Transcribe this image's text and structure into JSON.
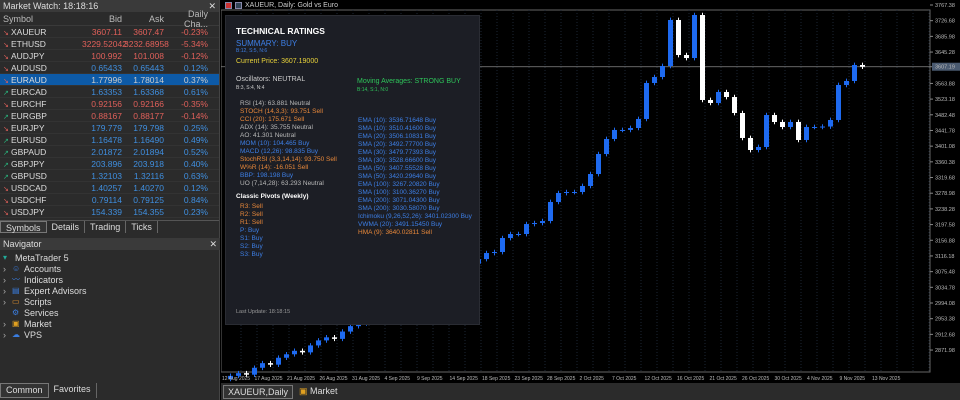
{
  "market_watch": {
    "title": "Market Watch: 18:18:16",
    "columns": [
      "Symbol",
      "Bid",
      "Ask",
      "Daily Cha..."
    ],
    "rows": [
      {
        "symbol": "XAUEUR",
        "bid": "3607.11",
        "ask": "3607.47",
        "change": "-0.23%",
        "dir": "down"
      },
      {
        "symbol": "ETHUSD",
        "bid": "3229.52042",
        "ask": "3232.68958",
        "change": "-5.34%",
        "dir": "down"
      },
      {
        "symbol": "AUDJPY",
        "bid": "100.992",
        "ask": "101.008",
        "change": "-0.12%",
        "dir": "down"
      },
      {
        "symbol": "AUDUSD",
        "bid": "0.65433",
        "ask": "0.65443",
        "change": "0.12%",
        "dir": "down"
      },
      {
        "symbol": "EURAUD",
        "bid": "1.77996",
        "ask": "1.78014",
        "change": "0.37%",
        "dir": "down",
        "selected": true
      },
      {
        "symbol": "EURCAD",
        "bid": "1.63353",
        "ask": "1.63368",
        "change": "0.61%",
        "dir": "up"
      },
      {
        "symbol": "EURCHF",
        "bid": "0.92156",
        "ask": "0.92166",
        "change": "-0.35%",
        "dir": "down"
      },
      {
        "symbol": "EURGBP",
        "bid": "0.88167",
        "ask": "0.88177",
        "change": "-0.14%",
        "dir": "up"
      },
      {
        "symbol": "EURJPY",
        "bid": "179.779",
        "ask": "179.798",
        "change": "0.25%",
        "dir": "down"
      },
      {
        "symbol": "EURUSD",
        "bid": "1.16478",
        "ask": "1.16490",
        "change": "0.49%",
        "dir": "up"
      },
      {
        "symbol": "GBPAUD",
        "bid": "2.01872",
        "ask": "2.01894",
        "change": "0.52%",
        "dir": "up"
      },
      {
        "symbol": "GBPJPY",
        "bid": "203.896",
        "ask": "203.918",
        "change": "0.40%",
        "dir": "up"
      },
      {
        "symbol": "GBPUSD",
        "bid": "1.32103",
        "ask": "1.32116",
        "change": "0.63%",
        "dir": "up"
      },
      {
        "symbol": "USDCAD",
        "bid": "1.40257",
        "ask": "1.40270",
        "change": "0.12%",
        "dir": "down"
      },
      {
        "symbol": "USDCHF",
        "bid": "0.79114",
        "ask": "0.79125",
        "change": "0.84%",
        "dir": "down"
      },
      {
        "symbol": "USDJPY",
        "bid": "154.339",
        "ask": "154.355",
        "change": "0.23%",
        "dir": "down"
      }
    ],
    "tabs": [
      "Symbols",
      "Details",
      "Trading",
      "Ticks"
    ]
  },
  "navigator": {
    "title": "Navigator",
    "items": [
      {
        "label": "MetaTrader 5",
        "icon": "mt5-icon",
        "expand": false,
        "root": true
      },
      {
        "label": "Accounts",
        "icon": "accounts-icon",
        "expand": true
      },
      {
        "label": "Indicators",
        "icon": "indicators-icon",
        "expand": true
      },
      {
        "label": "Expert Advisors",
        "icon": "expert-advisors-icon",
        "expand": true
      },
      {
        "label": "Scripts",
        "icon": "scripts-icon",
        "expand": true
      },
      {
        "label": "Services",
        "icon": "services-icon",
        "expand": false
      },
      {
        "label": "Market",
        "icon": "market-icon",
        "expand": true
      },
      {
        "label": "VPS",
        "icon": "vps-icon",
        "expand": true
      }
    ],
    "tabs": [
      "Common",
      "Favorites"
    ]
  },
  "chart": {
    "title": "XAUEUR, Daily:  Gold vs Euro",
    "current_price": 3607.19,
    "price_labels": [
      "3767.38",
      "3726.68",
      "3685.98",
      "3645.28",
      "3607.19",
      "3563.88",
      "3523.18",
      "3482.48",
      "3441.78",
      "3401.08",
      "3360.38",
      "3319.68",
      "3278.98",
      "3238.28",
      "3197.58",
      "3156.88",
      "3116.18",
      "3075.48",
      "3034.78",
      "2994.08",
      "2953.38",
      "2912.68",
      "2871.98"
    ],
    "date_labels": [
      "12 Aug 2025",
      "17 Aug 2025",
      "21 Aug 2025",
      "26 Aug 2025",
      "31 Aug 2025",
      "4 Sep 2025",
      "9 Sep 2025",
      "14 Sep 2025",
      "18 Sep 2025",
      "23 Sep 2025",
      "28 Sep 2025",
      "2 Oct 2025",
      "7 Oct 2025",
      "12 Oct 2025",
      "16 Oct 2025",
      "21 Oct 2025",
      "26 Oct 2025",
      "30 Oct 2025",
      "4 Nov 2025",
      "9 Nov 2025",
      "13 Nov 2025"
    ],
    "closes": [
      2805,
      2812,
      2808,
      2826,
      2838,
      2834,
      2852,
      2861,
      2870,
      2866,
      2884,
      2897,
      2905,
      2901,
      2920,
      2934,
      2941,
      2950,
      2946,
      2968,
      2980,
      2992,
      2999,
      3012,
      3021,
      3035,
      3046,
      3055,
      3068,
      3080,
      3096,
      3108,
      3123.8,
      3126.4,
      3162.7,
      3173.1,
      3173.1,
      3199.0,
      3201.6,
      3206.8,
      3256.2,
      3279.5,
      3282.1,
      3282.1,
      3297.7,
      3328.8,
      3380.7,
      3419.7,
      3443.1,
      3443.1,
      3448.2,
      3471.6,
      3565.0,
      3580.5,
      3609.1,
      3728.5,
      3637.6,
      3629.8,
      3741.4,
      3520.9,
      3513.1,
      3541.6,
      3528.6,
      3487.1,
      3422.3,
      3391.1,
      3398.9,
      3481.9,
      3463.8,
      3450.8,
      3463.8,
      3417.1,
      3450.8,
      3450.8,
      3452.0,
      3469.0,
      3559.8,
      3570.2,
      3611.7,
      3607.2
    ],
    "colors": {
      "up": "#1e6af0",
      "down": "#ffffff",
      "grid": "#1c2633"
    }
  },
  "ratings": {
    "title": "TECHNICAL RATINGS",
    "summary": "SUMMARY: BUY",
    "summary_counts": "B:12, S:5, N:6",
    "current_price": "Current Price: 3607.19000",
    "osc_title": "Oscillators: NEUTRAL",
    "osc_counts": "B:3, S:4, N:4",
    "ma_title": "Moving Averages: STRONG BUY",
    "ma_counts": "B:14, S:1, N:0",
    "oscillators": [
      {
        "text": "RSI (14): 63.881 Neutral",
        "signal": "neutral"
      },
      {
        "text": "STOCH (14,3,3): 93.751 Sell",
        "signal": "sell"
      },
      {
        "text": "CCI (20): 175.671 Sell",
        "signal": "sell"
      },
      {
        "text": "ADX (14): 35.755 Neutral",
        "signal": "neutral"
      },
      {
        "text": "AO: 41.301 Neutral",
        "signal": "neutral"
      },
      {
        "text": "MOM (10): 104.465 Buy",
        "signal": "buy"
      },
      {
        "text": "MACD (12,26): 98.835 Buy",
        "signal": "buy"
      },
      {
        "text": "StochRSI (3,3,14,14): 93.750 Sell",
        "signal": "sell"
      },
      {
        "text": "W%R (14): -16.051 Sell",
        "signal": "sell"
      },
      {
        "text": "BBP: 198.198 Buy",
        "signal": "buy"
      },
      {
        "text": "UO (7,14,28): 63.293 Neutral",
        "signal": "neutral"
      }
    ],
    "moving_averages": [
      {
        "text": "EMA (10): 3536.71648 Buy",
        "signal": "buy"
      },
      {
        "text": "SMA (10): 3510.41600 Buy",
        "signal": "buy"
      },
      {
        "text": "EMA (20): 3506.10831 Buy",
        "signal": "buy"
      },
      {
        "text": "SMA (20): 3492.77700 Buy",
        "signal": "buy"
      },
      {
        "text": "EMA (30): 3479.77393 Buy",
        "signal": "buy"
      },
      {
        "text": "SMA (30): 3528.66600 Buy",
        "signal": "buy"
      },
      {
        "text": "EMA (50): 3407.55528 Buy",
        "signal": "buy"
      },
      {
        "text": "SMA (50): 3420.29640 Buy",
        "signal": "buy"
      },
      {
        "text": "EMA (100): 3267.20820 Buy",
        "signal": "buy"
      },
      {
        "text": "SMA (100): 3100.36270 Buy",
        "signal": "buy"
      },
      {
        "text": "EMA (200): 3071.04300 Buy",
        "signal": "buy"
      },
      {
        "text": "SMA (200): 3030.58070 Buy",
        "signal": "buy"
      },
      {
        "text": "Ichimoku (9,26,52,26): 3401.02300 Buy",
        "signal": "buy"
      },
      {
        "text": "VWMA (20): 3491.15450 Buy",
        "signal": "buy"
      },
      {
        "text": "HMA (9): 3640.02811 Sell",
        "signal": "sell"
      }
    ],
    "pivots_title": "Classic Pivots (Weekly)",
    "pivots": [
      {
        "text": "R3: Sell",
        "signal": "sell"
      },
      {
        "text": "R2: Sell",
        "signal": "sell"
      },
      {
        "text": "R1: Sell",
        "signal": "sell"
      },
      {
        "text": "P: Buy",
        "signal": "buy"
      },
      {
        "text": "S1: Buy",
        "signal": "buy"
      },
      {
        "text": "S2: Buy",
        "signal": "buy"
      },
      {
        "text": "S3: Buy",
        "signal": "buy"
      }
    ],
    "last_update": "Last Update: 18:18:15",
    "colors": {
      "buy": "#3d7fe6",
      "sell": "#e8883a",
      "neutral": "#b8b8b8",
      "title": "#ffffff",
      "summary": "#3d7fe6",
      "price": "#e8d23a",
      "ma": "#2ec45a"
    }
  },
  "bottom_tabs": [
    {
      "label": "XAUEUR,Daily",
      "active": true
    },
    {
      "label": "Market",
      "icon": "market-icon"
    }
  ]
}
